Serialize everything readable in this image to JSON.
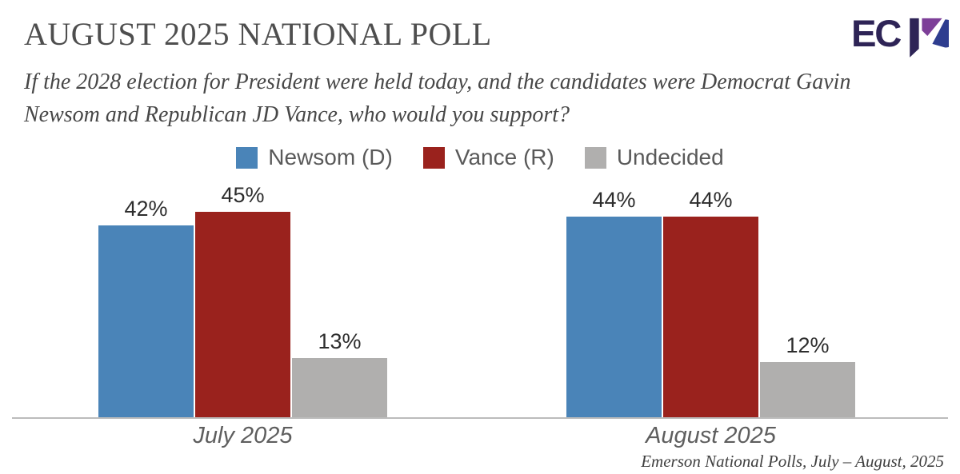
{
  "header": {
    "title": "AUGUST 2025 NATIONAL POLL",
    "question": "If the 2028 election for President were held today, and the candidates were Democrat Gavin Newsom and Republican JD Vance, who would you support?",
    "question_lines": [
      "If the 2028 election for President were held today, and the candidates were Democrat Gavin",
      "Newsom and Republican JD Vance, who would you support?"
    ],
    "logo": {
      "text": "ECP",
      "ec": "EC",
      "navy": "#2e2456",
      "purple": "#7d3f98",
      "blue": "#2e3d8f"
    }
  },
  "chart_data": {
    "type": "bar",
    "title": "AUGUST 2025 NATIONAL POLL",
    "categories": [
      "July 2025",
      "August 2025"
    ],
    "series": [
      {
        "name": "Newsom (D)",
        "color": "#4a84b8",
        "values": [
          42,
          44
        ]
      },
      {
        "name": "Vance (R)",
        "color": "#9a221d",
        "values": [
          45,
          44
        ]
      },
      {
        "name": "Undecided",
        "color": "#b0afae",
        "values": [
          13,
          12
        ]
      }
    ],
    "value_suffix": "%",
    "ylim": [
      0,
      50
    ],
    "grid": false,
    "legend_position": "top",
    "axis_color": "#bcbcbc"
  },
  "footer": {
    "source": "Emerson National Polls, July – August, 2025"
  }
}
